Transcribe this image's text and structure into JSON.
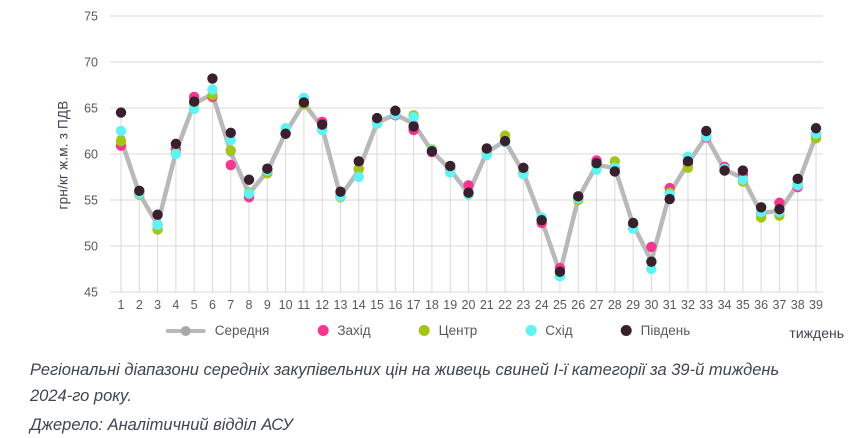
{
  "chart_data": {
    "type": "line",
    "title": "",
    "xlabel": "тиждень",
    "ylabel": "грн/кг ж.м. з ПДВ",
    "x": [
      1,
      2,
      3,
      4,
      5,
      6,
      7,
      8,
      9,
      10,
      11,
      12,
      13,
      14,
      15,
      16,
      17,
      18,
      19,
      20,
      21,
      22,
      23,
      24,
      25,
      26,
      27,
      28,
      29,
      30,
      31,
      32,
      33,
      34,
      35,
      36,
      37,
      38,
      39
    ],
    "ylim": [
      45,
      75
    ],
    "y_ticks": [
      75,
      70,
      65,
      60,
      55,
      50,
      45
    ],
    "grid": true,
    "legend_position": "bottom",
    "colors": {
      "grid": "#d9d9d9",
      "tick_text": "#595959",
      "axis_title_text": "#3e4554"
    },
    "series": [
      {
        "name": "Середня",
        "style": "line+marker",
        "color": "#b9b9b9",
        "marker_color": "#a8a8a8",
        "values": [
          61.6,
          55.7,
          52.3,
          60.2,
          65.5,
          66.5,
          60.2,
          55.7,
          58.1,
          62.3,
          65.5,
          62.9,
          55.4,
          58.2,
          63.4,
          64.3,
          63.3,
          60.3,
          58.3,
          55.7,
          60.2,
          61.4,
          58.0,
          52.8,
          47.1,
          55.2,
          58.8,
          58.5,
          52.3,
          48.4,
          55.7,
          59.0,
          61.9,
          58.3,
          57.4,
          53.6,
          53.8,
          56.7,
          62.0
        ]
      },
      {
        "name": "Захід",
        "style": "marker",
        "color": "#f6368f",
        "marker_color": "#f6368f",
        "values": [
          60.9,
          55.6,
          52.3,
          60.5,
          66.2,
          66.2,
          58.8,
          55.3,
          58.0,
          62.2,
          65.5,
          63.5,
          55.4,
          58.4,
          63.4,
          64.2,
          62.6,
          60.2,
          58.5,
          56.6,
          60.2,
          61.4,
          58.0,
          52.5,
          47.6,
          55.2,
          59.3,
          58.5,
          52.3,
          49.9,
          56.3,
          59.0,
          61.8,
          58.6,
          57.8,
          53.6,
          54.7,
          56.4,
          62.0
        ]
      },
      {
        "name": "Центр",
        "style": "marker",
        "color": "#a3c614",
        "marker_color": "#a3c614",
        "values": [
          61.4,
          55.6,
          51.8,
          60.1,
          65.5,
          66.4,
          60.4,
          55.8,
          57.9,
          62.2,
          65.4,
          62.8,
          55.3,
          58.4,
          63.4,
          64.3,
          64.2,
          60.5,
          58.3,
          55.7,
          60.2,
          62.0,
          58.0,
          52.8,
          47.1,
          55.0,
          58.8,
          59.2,
          52.3,
          48.3,
          55.8,
          58.5,
          62.0,
          58.3,
          57.0,
          53.1,
          53.3,
          56.8,
          61.7
        ]
      },
      {
        "name": "Схід",
        "style": "marker",
        "color": "#5ff3f3",
        "marker_color": "#5ff3f3",
        "values": [
          62.5,
          55.7,
          52.3,
          60.0,
          64.9,
          67.0,
          61.5,
          55.7,
          58.2,
          62.8,
          66.1,
          62.6,
          55.4,
          57.5,
          63.3,
          64.3,
          64.0,
          60.4,
          58.0,
          55.6,
          59.9,
          61.3,
          57.8,
          53.1,
          46.7,
          55.2,
          58.3,
          58.5,
          51.9,
          47.5,
          55.6,
          59.7,
          61.9,
          58.4,
          57.2,
          53.7,
          53.7,
          56.6,
          62.2
        ]
      },
      {
        "name": "Південь",
        "style": "marker",
        "color": "#38202e",
        "marker_color": "#38202e",
        "values": [
          64.5,
          56.0,
          53.4,
          61.1,
          65.7,
          68.2,
          62.3,
          57.2,
          58.4,
          62.2,
          65.6,
          63.2,
          55.9,
          59.2,
          63.9,
          64.7,
          63.0,
          60.3,
          58.7,
          55.8,
          60.6,
          61.4,
          58.5,
          52.8,
          47.2,
          55.4,
          59.0,
          58.1,
          52.5,
          48.3,
          55.1,
          59.2,
          62.5,
          58.2,
          58.2,
          54.2,
          54.0,
          57.3,
          62.8
        ]
      }
    ]
  },
  "caption": {
    "line1": "Регіональні діапазони середніх закупівельних цін на живець свиней І-ї категорії за 39-й тиждень",
    "line2": "2024-го року.",
    "source": "Джерело: Аналітичний відділ АСУ"
  }
}
